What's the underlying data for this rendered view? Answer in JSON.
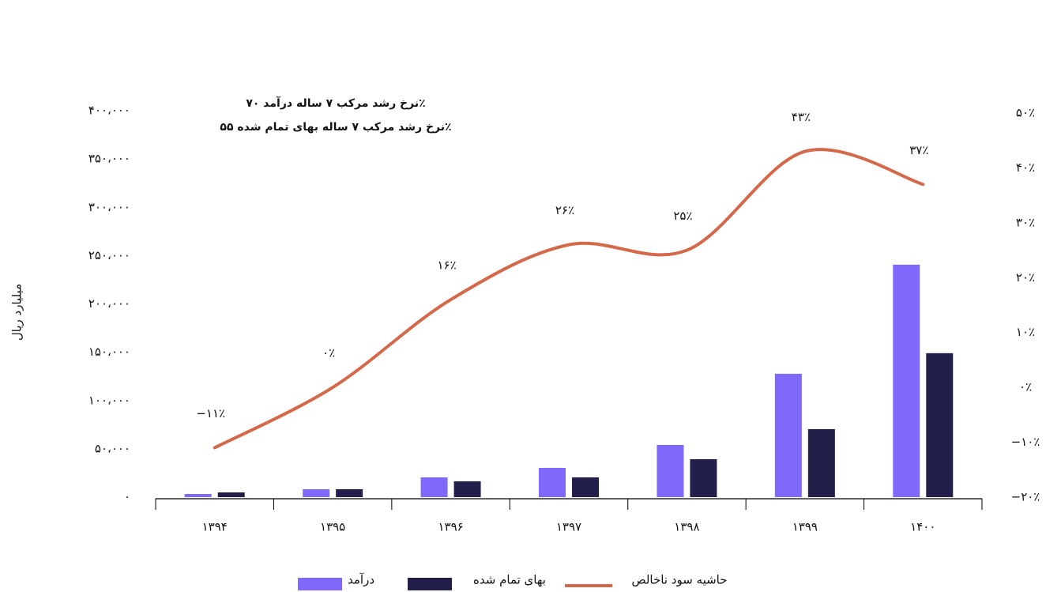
{
  "chart_data": {
    "type": "bar_line",
    "y_label": "میلیارد ریال",
    "annotations": [
      "نرخ رشد مرکب ۷ ساله درآمد ۷۰٪",
      "نرخ رشد مرکب ۷ ساله بهای تمام شده ۵۵٪"
    ],
    "categories": [
      "۱۳۹۴",
      "۱۳۹۵",
      "۱۳۹۶",
      "۱۳۹۷",
      "۱۳۹۸",
      "۱۳۹۹",
      "۱۴۰۰"
    ],
    "series": [
      {
        "name": "درآمد",
        "type": "bar",
        "color": "#7f69fb",
        "values": [
          3300,
          8200,
          20500,
          30300,
          54000,
          127700,
          240600
        ]
      },
      {
        "name": "بهای تمام شده",
        "type": "bar",
        "color": "#22204a",
        "values": [
          4900,
          8200,
          16400,
          20500,
          39300,
          70400,
          149000
        ]
      },
      {
        "name": "حاشیه سود ناخالص",
        "type": "line",
        "axis": "y2",
        "color": "#d4694a",
        "values": [
          -11,
          0,
          16,
          26,
          25,
          43,
          37
        ],
        "value_labels": [
          "−۱۱٪",
          "۰٪",
          "۱۶٪",
          "۲۶٪",
          "۲۵٪",
          "۴۳٪",
          "۳۷٪"
        ]
      }
    ],
    "ylim": [
      0,
      400000
    ],
    "yticks": [
      {
        "value": 0,
        "label": "۰"
      },
      {
        "value": 50000,
        "label": "۵۰،۰۰۰"
      },
      {
        "value": 100000,
        "label": "۱۰۰،۰۰۰"
      },
      {
        "value": 150000,
        "label": "۱۵۰،۰۰۰"
      },
      {
        "value": 200000,
        "label": "۲۰۰،۰۰۰"
      },
      {
        "value": 250000,
        "label": "۲۵۰،۰۰۰"
      },
      {
        "value": 300000,
        "label": "۳۰۰،۰۰۰"
      },
      {
        "value": 350000,
        "label": "۳۵۰،۰۰۰"
      },
      {
        "value": 400000,
        "label": "۴۰۰،۰۰۰"
      }
    ],
    "y2lim": [
      -20,
      50
    ],
    "y2ticks": [
      {
        "value": -20,
        "label": "−۲۰٪"
      },
      {
        "value": -10,
        "label": "−۱۰٪"
      },
      {
        "value": 0,
        "label": "۰٪"
      },
      {
        "value": 10,
        "label": "۱۰٪"
      },
      {
        "value": 20,
        "label": "۲۰٪"
      },
      {
        "value": 30,
        "label": "۳۰٪"
      },
      {
        "value": 40,
        "label": "۴۰٪"
      },
      {
        "value": 50,
        "label": "۵۰٪"
      }
    ],
    "grid": false
  }
}
